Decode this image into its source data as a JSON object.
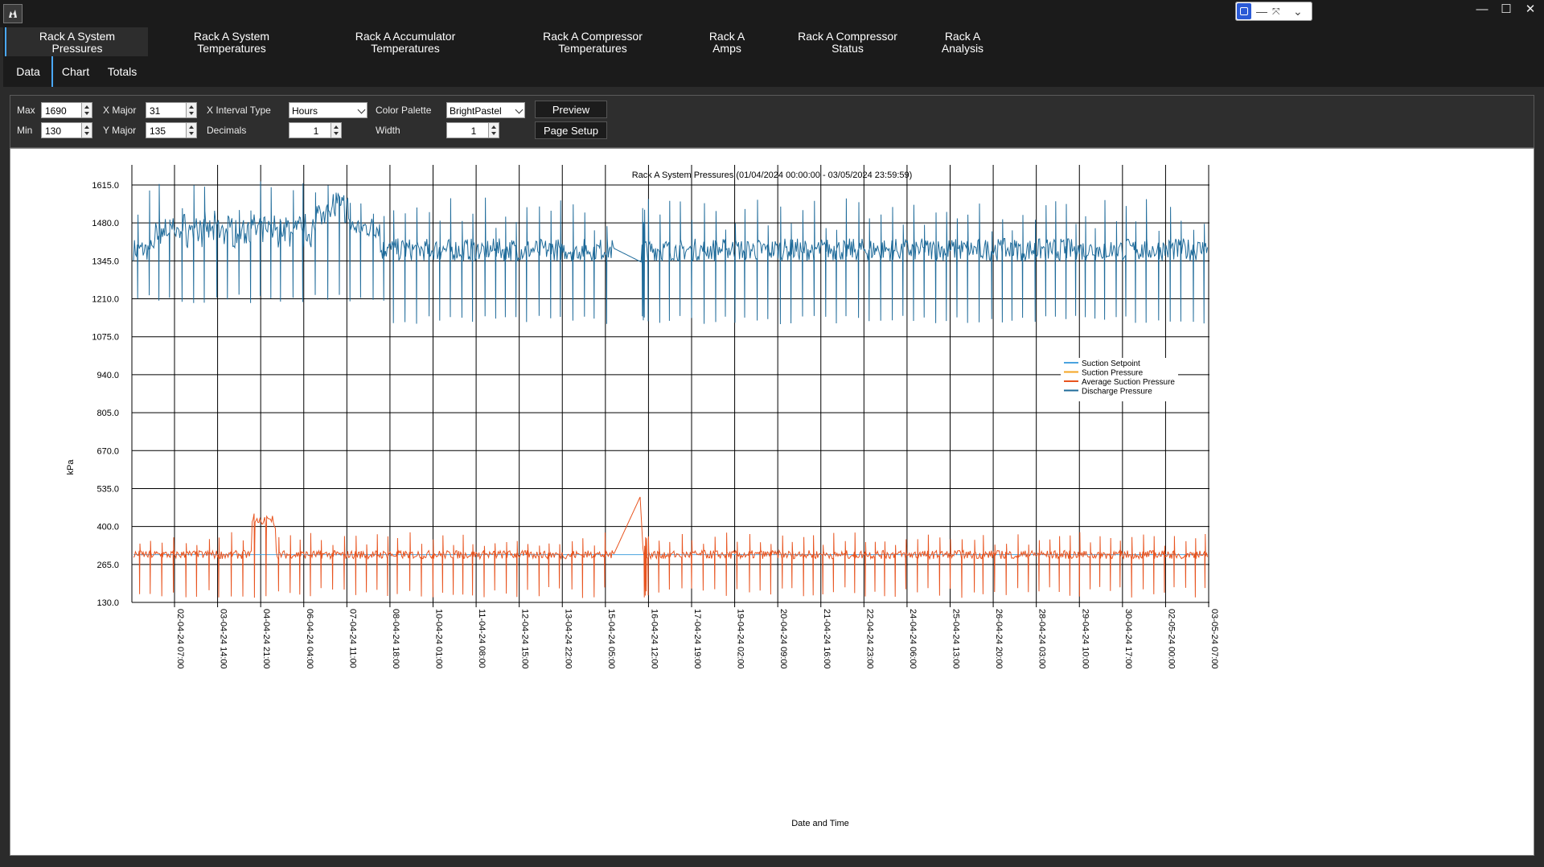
{
  "tabs_primary": [
    {
      "label": "Rack A System\nPressures",
      "active": true
    },
    {
      "label": "Rack A System\nTemperatures",
      "active": false
    },
    {
      "label": "Rack A Accumulator\nTemperatures",
      "active": false
    },
    {
      "label": "Rack A Compressor\nTemperatures",
      "active": false
    },
    {
      "label": "Rack A\nAmps",
      "active": false
    },
    {
      "label": "Rack A Compressor\nStatus",
      "active": false
    },
    {
      "label": "Rack A\nAnalysis",
      "active": false
    }
  ],
  "tabs_secondary": [
    {
      "label": "Data",
      "active": false
    },
    {
      "label": "Chart",
      "active": true
    },
    {
      "label": "Totals",
      "active": false
    }
  ],
  "window_controls": {
    "minimize": "—",
    "maximize": "☐",
    "close": "✕"
  },
  "toolbar": {
    "max_label": "Max",
    "max_value": "1690",
    "min_label": "Min",
    "min_value": "130",
    "xmajor_label": "X Major",
    "xmajor_value": "31",
    "ymajor_label": "Y Major",
    "ymajor_value": "135",
    "xinterval_label": "X Interval Type",
    "xinterval_value": "Hours",
    "decimals_label": "Decimals",
    "decimals_value": "1",
    "palette_label": "Color Palette",
    "palette_value": "BrightPastel",
    "width_label": "Width",
    "width_value": "1",
    "preview_label": "Preview",
    "pagesetup_label": "Page Setup"
  },
  "chart_data": {
    "type": "line",
    "title": "Rack A System Pressures (01/04/2024 00:00:00 - 03/05/2024 23:59:59)",
    "xlabel": "Date and Time",
    "ylabel": "kPa",
    "ylim": [
      130,
      1690
    ],
    "y_ticks": [
      "1615.0",
      "1480.0",
      "1345.0",
      "1210.0",
      "1075.0",
      "940.0",
      "805.0",
      "670.0",
      "535.0",
      "400.0",
      "265.0",
      "130.0"
    ],
    "x_ticks": [
      "02-04-24 07:00",
      "03-04-24 14:00",
      "04-04-24 21:00",
      "06-04-24 04:00",
      "07-04-24 11:00",
      "08-04-24 18:00",
      "10-04-24 01:00",
      "11-04-24 08:00",
      "12-04-24 15:00",
      "13-04-24 22:00",
      "15-04-24 05:00",
      "16-04-24 12:00",
      "17-04-24 19:00",
      "19-04-24 02:00",
      "20-04-24 09:00",
      "21-04-24 16:00",
      "22-04-24 23:00",
      "24-04-24 06:00",
      "25-04-24 13:00",
      "26-04-24 20:00",
      "28-04-24 03:00",
      "29-04-24 10:00",
      "30-04-24 17:00",
      "02-05-24 00:00",
      "03-05-24 07:00"
    ],
    "grid": true,
    "legend_position": "right",
    "series": [
      {
        "name": "Suction Setpoint",
        "color": "#4aa3df",
        "typical": 300
      },
      {
        "name": "Suction Pressure",
        "color": "#f5a623",
        "typical": 300,
        "range": [
          145,
          440
        ]
      },
      {
        "name": "Average Suction Pressure",
        "color": "#e8531e",
        "typical": 300,
        "range": [
          145,
          505
        ]
      },
      {
        "name": "Discharge Pressure",
        "color": "#1f6b9a",
        "typical": 1385,
        "range": [
          1110,
          1680
        ]
      }
    ]
  }
}
